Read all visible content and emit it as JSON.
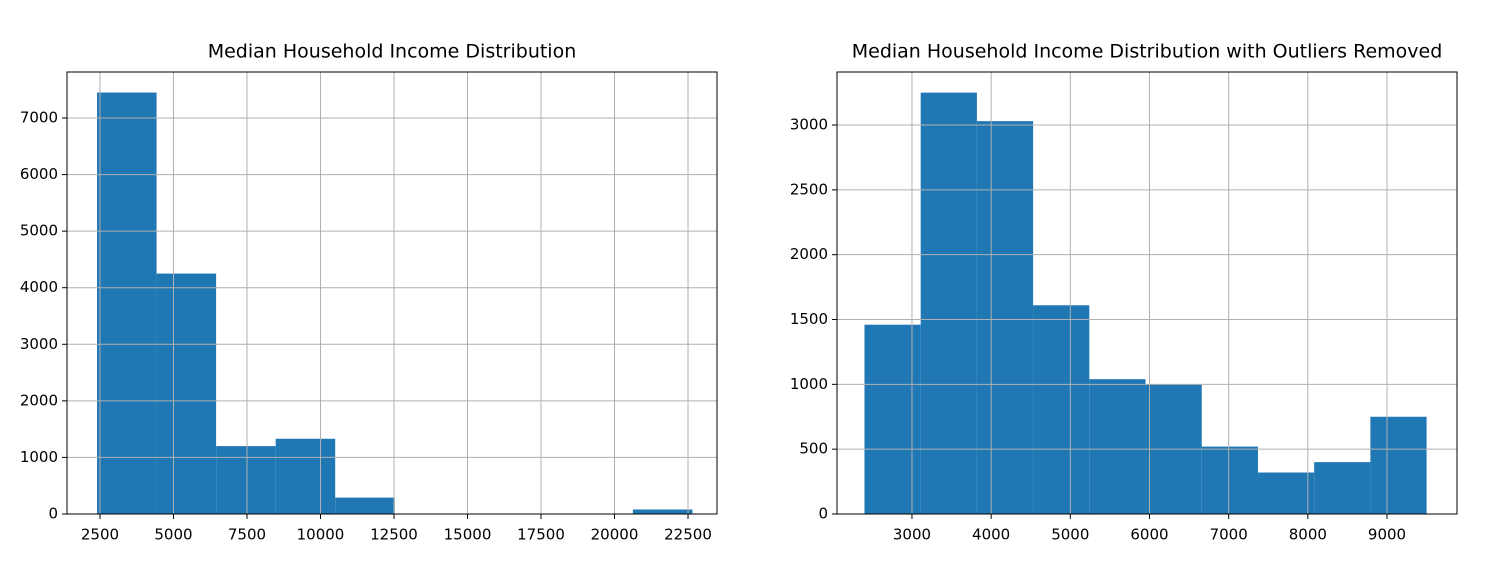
{
  "chart_data": [
    {
      "type": "histogram",
      "title": "Median Household Income Distribution",
      "bins": [
        2400,
        4425,
        6450,
        8475,
        10500,
        12525,
        14550,
        16575,
        18600,
        20625,
        22650
      ],
      "values": [
        7450,
        4250,
        1200,
        1330,
        290,
        0,
        0,
        0,
        0,
        80
      ],
      "color": "#1f77b4",
      "xlim": [
        1378,
        23486
      ],
      "xticks": [
        2500,
        5000,
        7500,
        10000,
        12500,
        15000,
        17500,
        20000,
        22500
      ],
      "ylim": [
        0,
        7813
      ],
      "yticks": [
        0,
        1000,
        2000,
        3000,
        4000,
        5000,
        6000,
        7000
      ],
      "grid": true
    },
    {
      "type": "histogram",
      "title": "Median Household Income Distribution with Outliers Removed",
      "bins": [
        2400,
        3110,
        3820,
        4530,
        5240,
        5950,
        6660,
        7370,
        8080,
        8790,
        9500
      ],
      "values": [
        1460,
        3250,
        3030,
        1610,
        1040,
        1000,
        520,
        320,
        400,
        750
      ],
      "color": "#1f77b4",
      "xlim": [
        2053,
        9884
      ],
      "xticks": [
        3000,
        4000,
        5000,
        6000,
        7000,
        8000,
        9000
      ],
      "ylim": [
        0,
        3409
      ],
      "yticks": [
        0,
        500,
        1000,
        1500,
        2000,
        2500,
        3000
      ],
      "grid": true
    }
  ]
}
